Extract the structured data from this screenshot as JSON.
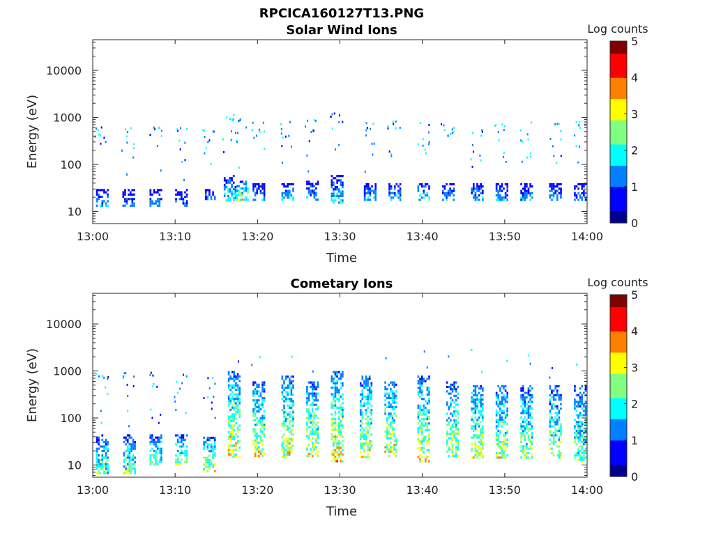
{
  "figure_title": "RPCICA160127T13.PNG",
  "colors": {
    "colormap": [
      "#00008f",
      "#0000ff",
      "#0080ff",
      "#00ffff",
      "#80ff80",
      "#ffff00",
      "#ff8000",
      "#ff0000",
      "#800000"
    ],
    "axis": "#262626"
  },
  "chart_data": [
    {
      "type": "heatmap",
      "title": "Solar Wind Ions",
      "xlabel": "Time",
      "ylabel": "Energy (eV)",
      "x_ticks": [
        "13:00",
        "13:10",
        "13:20",
        "13:30",
        "13:40",
        "13:50",
        "14:00"
      ],
      "x_range_minutes": [
        0,
        60
      ],
      "y_scale": "log",
      "y_ticks": [
        "10",
        "100",
        "1000",
        "10000"
      ],
      "y_range": [
        5.5,
        45000
      ],
      "colorbar": {
        "label": "Log counts",
        "range": [
          0,
          5
        ],
        "ticks": [
          "0",
          "1",
          "2",
          "3",
          "4",
          "5"
        ]
      },
      "bursts": [
        {
          "t": 1.0,
          "eband": [
            13,
            30
          ],
          "level": 1.3
        },
        {
          "t": 4.2,
          "eband": [
            13,
            30
          ],
          "level": 1.0
        },
        {
          "t": 7.5,
          "eband": [
            13,
            30
          ],
          "level": 1.2
        },
        {
          "t": 10.6,
          "eband": [
            13,
            30
          ],
          "level": 1.1
        },
        {
          "t": 14.0,
          "eband": [
            18,
            30
          ],
          "level": 1.2
        },
        {
          "t": 16.5,
          "eband": [
            18,
            60
          ],
          "level": 1.5
        },
        {
          "t": 18.0,
          "eband": [
            18,
            45
          ],
          "level": 2.5
        },
        {
          "t": 20.0,
          "eband": [
            18,
            40
          ],
          "level": 1.3
        },
        {
          "t": 23.5,
          "eband": [
            18,
            40
          ],
          "level": 1.5
        },
        {
          "t": 26.5,
          "eband": [
            18,
            45
          ],
          "level": 1.3
        },
        {
          "t": 29.5,
          "eband": [
            15,
            60
          ],
          "level": 1.6
        },
        {
          "t": 33.5,
          "eband": [
            18,
            40
          ],
          "level": 1.4
        },
        {
          "t": 36.5,
          "eband": [
            18,
            40
          ],
          "level": 1.5
        },
        {
          "t": 40.0,
          "eband": [
            18,
            40
          ],
          "level": 1.6
        },
        {
          "t": 43.0,
          "eband": [
            18,
            40
          ],
          "level": 1.3
        },
        {
          "t": 46.5,
          "eband": [
            18,
            40
          ],
          "level": 1.4
        },
        {
          "t": 49.5,
          "eband": [
            18,
            40
          ],
          "level": 1.3
        },
        {
          "t": 52.5,
          "eband": [
            18,
            40
          ],
          "level": 1.2
        },
        {
          "t": 56.0,
          "eband": [
            18,
            40
          ],
          "level": 1.3
        },
        {
          "t": 59.0,
          "eband": [
            18,
            40
          ],
          "level": 1.1
        }
      ]
    },
    {
      "type": "heatmap",
      "title": "Cometary Ions",
      "xlabel": "Time",
      "ylabel": "Energy (eV)",
      "x_ticks": [
        "13:00",
        "13:10",
        "13:20",
        "13:30",
        "13:40",
        "13:50",
        "14:00"
      ],
      "x_range_minutes": [
        0,
        60
      ],
      "y_scale": "log",
      "y_ticks": [
        "10",
        "100",
        "1000",
        "10000"
      ],
      "y_range": [
        5.5,
        45000
      ],
      "colorbar": {
        "label": "Log counts",
        "range": [
          0,
          5
        ],
        "ticks": [
          "0",
          "1",
          "2",
          "3",
          "4",
          "5"
        ]
      },
      "bursts": [
        {
          "t": 1.0,
          "eband": [
            7,
            45
          ],
          "level": 2.0
        },
        {
          "t": 4.3,
          "eband": [
            7,
            45
          ],
          "level": 2.2
        },
        {
          "t": 7.5,
          "eband": [
            10,
            45
          ],
          "level": 2.2
        },
        {
          "t": 10.6,
          "eband": [
            10,
            45
          ],
          "level": 2.3
        },
        {
          "t": 14.0,
          "eband": [
            7,
            40
          ],
          "level": 2.6
        },
        {
          "t": 17.0,
          "eband": [
            15,
            1000
          ],
          "level": 2.8
        },
        {
          "t": 20.0,
          "eband": [
            15,
            600
          ],
          "level": 2.6
        },
        {
          "t": 23.5,
          "eband": [
            15,
            800
          ],
          "level": 2.7
        },
        {
          "t": 26.5,
          "eband": [
            15,
            600
          ],
          "level": 2.6
        },
        {
          "t": 29.5,
          "eband": [
            12,
            1000
          ],
          "level": 2.9
        },
        {
          "t": 33.0,
          "eband": [
            15,
            800
          ],
          "level": 2.6
        },
        {
          "t": 36.0,
          "eband": [
            15,
            600
          ],
          "level": 2.7
        },
        {
          "t": 40.0,
          "eband": [
            12,
            800
          ],
          "level": 2.7
        },
        {
          "t": 43.5,
          "eband": [
            15,
            600
          ],
          "level": 2.5
        },
        {
          "t": 46.5,
          "eband": [
            15,
            500
          ],
          "level": 2.6
        },
        {
          "t": 49.5,
          "eband": [
            15,
            500
          ],
          "level": 2.4
        },
        {
          "t": 52.5,
          "eband": [
            15,
            500
          ],
          "level": 2.3
        },
        {
          "t": 56.0,
          "eband": [
            15,
            500
          ],
          "level": 2.3
        },
        {
          "t": 59.0,
          "eband": [
            12,
            500
          ],
          "level": 2.2
        }
      ]
    }
  ]
}
